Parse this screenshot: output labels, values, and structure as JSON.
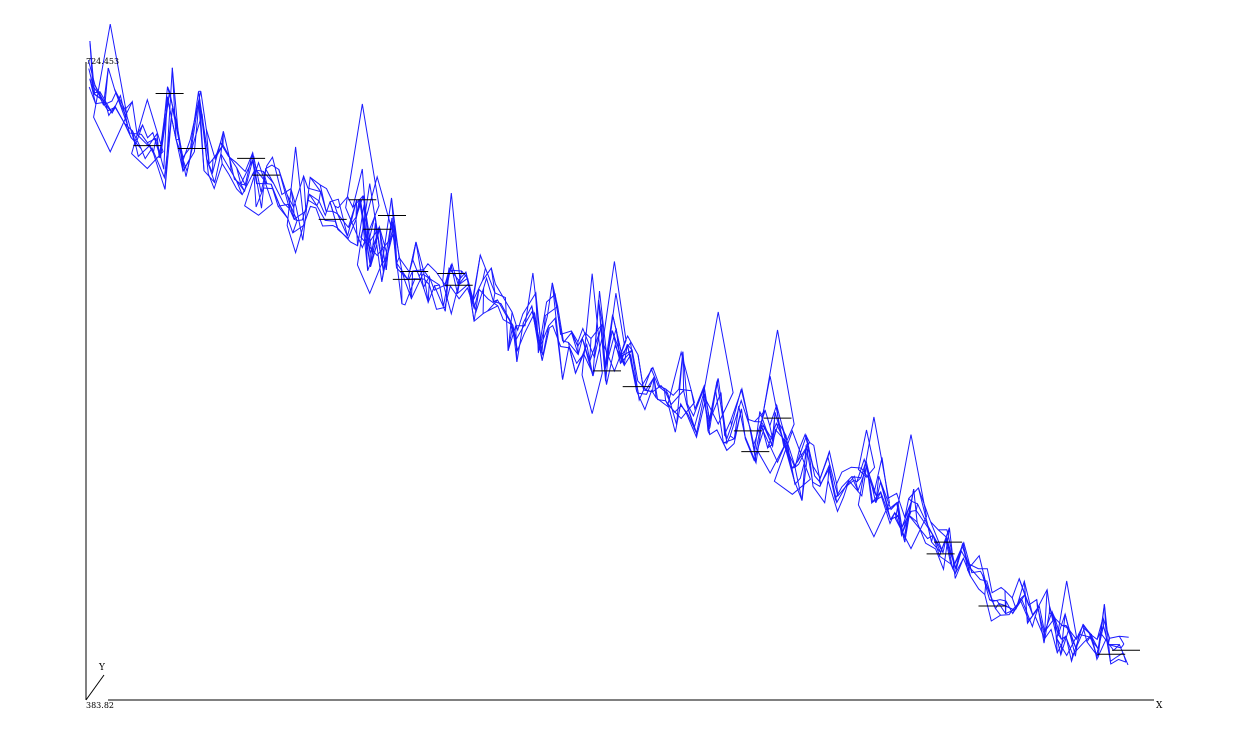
{
  "chart_data": {
    "type": "line",
    "title": "",
    "style": "3d-wireframe",
    "wire_color": "#1a1aff",
    "ridge_color": "#000000",
    "axes": {
      "x_label": "X",
      "y_label": "Y",
      "z_top_label": "724.453",
      "z_bottom_label": "383.82",
      "zlim": [
        383.82,
        724.453
      ]
    },
    "grid": false,
    "legend": "none",
    "series": [
      {
        "role": "ridge",
        "x": [
          0,
          1,
          2,
          3,
          4,
          5,
          6,
          7,
          8,
          9,
          10,
          11,
          12,
          13,
          14,
          15,
          16,
          17,
          18,
          19,
          20,
          21,
          22,
          23,
          24,
          25,
          26,
          27,
          28,
          29,
          30,
          31,
          32,
          33,
          34,
          35,
          36,
          37,
          38,
          39,
          40,
          41,
          42,
          43,
          44,
          45,
          46,
          47,
          48,
          49,
          50,
          51,
          52,
          53,
          54,
          55,
          56,
          57,
          58,
          59,
          60,
          61,
          62,
          63,
          64,
          65,
          66,
          67,
          68,
          69,
          70,
          71,
          72,
          73,
          74,
          75,
          76,
          77,
          78,
          79,
          80,
          81,
          82,
          83,
          84,
          85,
          86,
          87,
          88,
          89,
          90,
          91,
          92,
          93,
          94,
          95,
          96,
          97,
          98,
          99,
          100,
          101,
          102,
          103,
          104,
          105,
          106,
          107,
          108,
          109,
          110,
          111,
          112,
          113,
          114,
          115,
          116,
          117,
          118,
          119,
          120,
          121,
          122,
          123,
          124,
          125,
          126,
          127,
          128,
          129,
          130,
          131,
          132,
          133,
          134,
          135,
          136,
          137,
          138,
          139,
          140
        ],
        "z": [
          705,
          684,
          690,
          670,
          679,
          660,
          650,
          640,
          633,
          642,
          611,
          686,
          644,
          612,
          630,
          680,
          615,
          605,
          625,
          616,
          603,
          592,
          620,
          580,
          603,
          595,
          576,
          573,
          560,
          566,
          586,
          580,
          557,
          558,
          554,
          541,
          560,
          578,
          520,
          548,
          510,
          562,
          512,
          497,
          505,
          512,
          497,
          493,
          480,
          503,
          491,
          500,
          465,
          491,
          500,
          477,
          470,
          457,
          440,
          450,
          475,
          421,
          458,
          466,
          433,
          432,
          422,
          435,
          408,
          448,
          404,
          441,
          417,
          428,
          388,
          381,
          397,
          383,
          381,
          364,
          378,
          371,
          351,
          382,
          344,
          388,
          330,
          342,
          376,
          343,
          322,
          353,
          333,
          356,
          336,
          300,
          311,
          329,
          297,
          286,
          307,
          272,
          286,
          298,
          291,
          312,
          276,
          287,
          262,
          265,
          239,
          262,
          258,
          241,
          236,
          218,
          230,
          198,
          219,
          201,
          192,
          188,
          165,
          170,
          170,
          162,
          182,
          150,
          162,
          140,
          154,
          132,
          140,
          120,
          132,
          128,
          116,
          138,
          116,
          121,
          120
        ]
      }
    ]
  }
}
